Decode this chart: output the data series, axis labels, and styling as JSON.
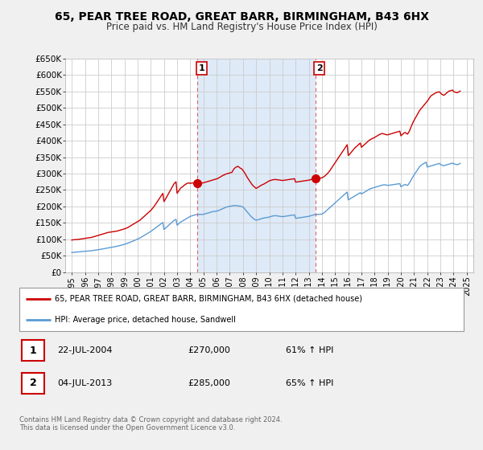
{
  "title": "65, PEAR TREE ROAD, GREAT BARR, BIRMINGHAM, B43 6HX",
  "subtitle": "Price paid vs. HM Land Registry's House Price Index (HPI)",
  "red_label": "65, PEAR TREE ROAD, GREAT BARR, BIRMINGHAM, B43 6HX (detached house)",
  "blue_label": "HPI: Average price, detached house, Sandwell",
  "ylim": [
    0,
    650000
  ],
  "yticks": [
    0,
    50000,
    100000,
    150000,
    200000,
    250000,
    300000,
    350000,
    400000,
    450000,
    500000,
    550000,
    600000,
    650000
  ],
  "ytick_labels": [
    "£0",
    "£50K",
    "£100K",
    "£150K",
    "£200K",
    "£250K",
    "£300K",
    "£350K",
    "£400K",
    "£450K",
    "£500K",
    "£550K",
    "£600K",
    "£650K"
  ],
  "sale1": {
    "date": "22-JUL-2004",
    "price": 270000,
    "hpi_pct": "61% ↑ HPI",
    "year": 2004.55
  },
  "sale2": {
    "date": "04-JUL-2013",
    "price": 285000,
    "hpi_pct": "65% ↑ HPI",
    "year": 2013.51
  },
  "footer": "Contains HM Land Registry data © Crown copyright and database right 2024.\nThis data is licensed under the Open Government Licence v3.0.",
  "bg_color": "#f0f0f0",
  "plot_bg": "#ffffff",
  "shaded_bg": "#deeaf7",
  "grid_color": "#cccccc",
  "red_color": "#cc0000",
  "blue_color": "#5b9bd5",
  "sale_dashed_color": "#e06060",
  "red_x": [
    1995.0,
    1995.083,
    1995.167,
    1995.25,
    1995.333,
    1995.417,
    1995.5,
    1995.583,
    1995.667,
    1995.75,
    1995.833,
    1995.917,
    1996.0,
    1996.083,
    1996.167,
    1996.25,
    1996.333,
    1996.417,
    1996.5,
    1996.583,
    1996.667,
    1996.75,
    1996.833,
    1996.917,
    1997.0,
    1997.083,
    1997.167,
    1997.25,
    1997.333,
    1997.417,
    1997.5,
    1997.583,
    1997.667,
    1997.75,
    1997.833,
    1997.917,
    1998.0,
    1998.083,
    1998.167,
    1998.25,
    1998.333,
    1998.417,
    1998.5,
    1998.583,
    1998.667,
    1998.75,
    1998.833,
    1998.917,
    1999.0,
    1999.083,
    1999.167,
    1999.25,
    1999.333,
    1999.417,
    1999.5,
    1999.583,
    1999.667,
    1999.75,
    1999.833,
    1999.917,
    2000.0,
    2000.083,
    2000.167,
    2000.25,
    2000.333,
    2000.417,
    2000.5,
    2000.583,
    2000.667,
    2000.75,
    2000.833,
    2000.917,
    2001.0,
    2001.083,
    2001.167,
    2001.25,
    2001.333,
    2001.417,
    2001.5,
    2001.583,
    2001.667,
    2001.75,
    2001.833,
    2001.917,
    2002.0,
    2002.083,
    2002.167,
    2002.25,
    2002.333,
    2002.417,
    2002.5,
    2002.583,
    2002.667,
    2002.75,
    2002.833,
    2002.917,
    2003.0,
    2003.083,
    2003.167,
    2003.25,
    2003.333,
    2003.417,
    2003.5,
    2003.583,
    2003.667,
    2003.75,
    2003.833,
    2003.917,
    2004.0,
    2004.083,
    2004.167,
    2004.25,
    2004.333,
    2004.417,
    2004.55,
    2005.0,
    2005.083,
    2005.167,
    2005.25,
    2005.333,
    2005.417,
    2005.5,
    2005.583,
    2005.667,
    2005.75,
    2005.833,
    2005.917,
    2006.0,
    2006.083,
    2006.167,
    2006.25,
    2006.333,
    2006.417,
    2006.5,
    2006.583,
    2006.667,
    2006.75,
    2006.833,
    2006.917,
    2007.0,
    2007.083,
    2007.167,
    2007.25,
    2007.333,
    2007.417,
    2007.5,
    2007.583,
    2007.667,
    2007.75,
    2007.833,
    2007.917,
    2008.0,
    2008.083,
    2008.167,
    2008.25,
    2008.333,
    2008.417,
    2008.5,
    2008.583,
    2008.667,
    2008.75,
    2008.833,
    2008.917,
    2009.0,
    2009.083,
    2009.167,
    2009.25,
    2009.333,
    2009.417,
    2009.5,
    2009.583,
    2009.667,
    2009.75,
    2009.833,
    2009.917,
    2010.0,
    2010.083,
    2010.167,
    2010.25,
    2010.333,
    2010.417,
    2010.5,
    2010.583,
    2010.667,
    2010.75,
    2010.833,
    2010.917,
    2011.0,
    2011.083,
    2011.167,
    2011.25,
    2011.333,
    2011.417,
    2011.5,
    2011.583,
    2011.667,
    2011.75,
    2011.833,
    2011.917,
    2012.0,
    2012.083,
    2012.167,
    2012.25,
    2012.333,
    2012.417,
    2012.5,
    2012.583,
    2012.667,
    2012.75,
    2012.833,
    2012.917,
    2013.0,
    2013.083,
    2013.167,
    2013.25,
    2013.333,
    2013.417,
    2013.51,
    2014.0,
    2014.083,
    2014.167,
    2014.25,
    2014.333,
    2014.417,
    2014.5,
    2014.583,
    2014.667,
    2014.75,
    2014.833,
    2014.917,
    2015.0,
    2015.083,
    2015.167,
    2015.25,
    2015.333,
    2015.417,
    2015.5,
    2015.583,
    2015.667,
    2015.75,
    2015.833,
    2015.917,
    2016.0,
    2016.083,
    2016.167,
    2016.25,
    2016.333,
    2016.417,
    2016.5,
    2016.583,
    2016.667,
    2016.75,
    2016.833,
    2016.917,
    2017.0,
    2017.083,
    2017.167,
    2017.25,
    2017.333,
    2017.417,
    2017.5,
    2017.583,
    2017.667,
    2017.75,
    2017.833,
    2017.917,
    2018.0,
    2018.083,
    2018.167,
    2018.25,
    2018.333,
    2018.417,
    2018.5,
    2018.583,
    2018.667,
    2018.75,
    2018.833,
    2018.917,
    2019.0,
    2019.083,
    2019.167,
    2019.25,
    2019.333,
    2019.417,
    2019.5,
    2019.583,
    2019.667,
    2019.75,
    2019.833,
    2019.917,
    2020.0,
    2020.083,
    2020.167,
    2020.25,
    2020.333,
    2020.417,
    2020.5,
    2020.583,
    2020.667,
    2020.75,
    2020.833,
    2020.917,
    2021.0,
    2021.083,
    2021.167,
    2021.25,
    2021.333,
    2021.417,
    2021.5,
    2021.583,
    2021.667,
    2021.75,
    2021.833,
    2021.917,
    2022.0,
    2022.083,
    2022.167,
    2022.25,
    2022.333,
    2022.417,
    2022.5,
    2022.583,
    2022.667,
    2022.75,
    2022.833,
    2022.917,
    2023.0,
    2023.083,
    2023.167,
    2023.25,
    2023.333,
    2023.417,
    2023.5,
    2023.583,
    2023.667,
    2023.75,
    2023.833,
    2023.917,
    2024.0,
    2024.083,
    2024.167,
    2024.25,
    2024.333,
    2024.417,
    2024.5
  ],
  "red_y": [
    98000,
    98500,
    99000,
    99200,
    99500,
    99800,
    100000,
    100500,
    101000,
    101500,
    102000,
    102500,
    103000,
    103500,
    104000,
    104500,
    105000,
    105500,
    106000,
    107000,
    108000,
    109000,
    110000,
    111000,
    112000,
    113000,
    114000,
    115000,
    116000,
    117000,
    118000,
    119000,
    120000,
    121000,
    121500,
    122000,
    122500,
    123000,
    123500,
    124000,
    124500,
    125000,
    126000,
    127000,
    128000,
    129000,
    130000,
    131000,
    132000,
    133000,
    134500,
    136000,
    138000,
    140000,
    142000,
    144000,
    146000,
    148000,
    150000,
    152000,
    154000,
    156000,
    158000,
    161000,
    164000,
    167000,
    170000,
    173000,
    176000,
    179000,
    182000,
    185000,
    188000,
    192000,
    196000,
    200000,
    205000,
    210000,
    215000,
    220000,
    225000,
    230000,
    235000,
    240000,
    215000,
    220000,
    226000,
    232000,
    238000,
    244000,
    250000,
    256000,
    262000,
    268000,
    272000,
    275000,
    240000,
    245000,
    250000,
    255000,
    258000,
    260000,
    263000,
    266000,
    268000,
    270000,
    271000,
    272000,
    270000,
    271000,
    271500,
    272000,
    271000,
    270500,
    270000,
    272000,
    273000,
    274000,
    275000,
    276000,
    277000,
    278000,
    279000,
    280000,
    281000,
    282000,
    283000,
    284000,
    285000,
    287000,
    289000,
    291000,
    293000,
    295000,
    296000,
    298000,
    299000,
    300000,
    301000,
    302000,
    303000,
    304000,
    310000,
    315000,
    318000,
    320000,
    322000,
    321000,
    318000,
    316000,
    314000,
    310000,
    305000,
    300000,
    294000,
    288000,
    283000,
    278000,
    273000,
    268000,
    264000,
    261000,
    258000,
    255000,
    257000,
    259000,
    261000,
    263000,
    265000,
    267000,
    268000,
    270000,
    272000,
    274000,
    276000,
    278000,
    279000,
    280000,
    281000,
    281500,
    282000,
    282000,
    281500,
    281000,
    280500,
    280000,
    279500,
    279000,
    279500,
    280000,
    280500,
    281000,
    281500,
    282000,
    282500,
    283000,
    283500,
    284000,
    284500,
    274000,
    274500,
    275000,
    275500,
    276000,
    276500,
    277000,
    277500,
    278000,
    278500,
    279000,
    279500,
    280000,
    281000,
    282000,
    283000,
    284000,
    285000,
    285000,
    287000,
    289000,
    291000,
    294000,
    297000,
    300000,
    304000,
    308000,
    313000,
    318000,
    323000,
    328000,
    333000,
    338000,
    343000,
    348000,
    353000,
    358000,
    363000,
    368000,
    373000,
    378000,
    383000,
    388000,
    355000,
    358000,
    362000,
    366000,
    370000,
    374000,
    378000,
    381000,
    384000,
    387000,
    390000,
    393000,
    380000,
    383000,
    386000,
    389000,
    392000,
    395000,
    398000,
    401000,
    403000,
    405000,
    407000,
    408000,
    410000,
    412000,
    414000,
    416000,
    418000,
    420000,
    421000,
    422000,
    421000,
    420000,
    419000,
    418000,
    418000,
    419000,
    420000,
    421000,
    422000,
    423000,
    424000,
    425000,
    426000,
    427000,
    428000,
    429000,
    415000,
    418000,
    421000,
    424000,
    425000,
    422000,
    420000,
    425000,
    432000,
    440000,
    448000,
    456000,
    462000,
    468000,
    474000,
    480000,
    486000,
    492000,
    496000,
    500000,
    504000,
    508000,
    512000,
    516000,
    520000,
    525000,
    530000,
    535000,
    538000,
    540000,
    542000,
    544000,
    546000,
    547000,
    548000,
    549000,
    545000,
    542000,
    540000,
    538000,
    540000,
    543000,
    546000,
    549000,
    551000,
    552000,
    553000,
    554000,
    550000,
    548000,
    547000,
    546000,
    547000,
    549000,
    551000
  ],
  "blue_x": [
    1995.0,
    1995.083,
    1995.167,
    1995.25,
    1995.333,
    1995.417,
    1995.5,
    1995.583,
    1995.667,
    1995.75,
    1995.833,
    1995.917,
    1996.0,
    1996.083,
    1996.167,
    1996.25,
    1996.333,
    1996.417,
    1996.5,
    1996.583,
    1996.667,
    1996.75,
    1996.833,
    1996.917,
    1997.0,
    1997.083,
    1997.167,
    1997.25,
    1997.333,
    1997.417,
    1997.5,
    1997.583,
    1997.667,
    1997.75,
    1997.833,
    1997.917,
    1998.0,
    1998.083,
    1998.167,
    1998.25,
    1998.333,
    1998.417,
    1998.5,
    1998.583,
    1998.667,
    1998.75,
    1998.833,
    1998.917,
    1999.0,
    1999.083,
    1999.167,
    1999.25,
    1999.333,
    1999.417,
    1999.5,
    1999.583,
    1999.667,
    1999.75,
    1999.833,
    1999.917,
    2000.0,
    2000.083,
    2000.167,
    2000.25,
    2000.333,
    2000.417,
    2000.5,
    2000.583,
    2000.667,
    2000.75,
    2000.833,
    2000.917,
    2001.0,
    2001.083,
    2001.167,
    2001.25,
    2001.333,
    2001.417,
    2001.5,
    2001.583,
    2001.667,
    2001.75,
    2001.833,
    2001.917,
    2002.0,
    2002.083,
    2002.167,
    2002.25,
    2002.333,
    2002.417,
    2002.5,
    2002.583,
    2002.667,
    2002.75,
    2002.833,
    2002.917,
    2003.0,
    2003.083,
    2003.167,
    2003.25,
    2003.333,
    2003.417,
    2003.5,
    2003.583,
    2003.667,
    2003.75,
    2003.833,
    2003.917,
    2004.0,
    2004.083,
    2004.167,
    2004.25,
    2004.333,
    2004.417,
    2004.5,
    2005.0,
    2005.083,
    2005.167,
    2005.25,
    2005.333,
    2005.417,
    2005.5,
    2005.583,
    2005.667,
    2005.75,
    2005.833,
    2005.917,
    2006.0,
    2006.083,
    2006.167,
    2006.25,
    2006.333,
    2006.417,
    2006.5,
    2006.583,
    2006.667,
    2006.75,
    2006.833,
    2006.917,
    2007.0,
    2007.083,
    2007.167,
    2007.25,
    2007.333,
    2007.417,
    2007.5,
    2007.583,
    2007.667,
    2007.75,
    2007.833,
    2007.917,
    2008.0,
    2008.083,
    2008.167,
    2008.25,
    2008.333,
    2008.417,
    2008.5,
    2008.583,
    2008.667,
    2008.75,
    2008.833,
    2008.917,
    2009.0,
    2009.083,
    2009.167,
    2009.25,
    2009.333,
    2009.417,
    2009.5,
    2009.583,
    2009.667,
    2009.75,
    2009.833,
    2009.917,
    2010.0,
    2010.083,
    2010.167,
    2010.25,
    2010.333,
    2010.417,
    2010.5,
    2010.583,
    2010.667,
    2010.75,
    2010.833,
    2010.917,
    2011.0,
    2011.083,
    2011.167,
    2011.25,
    2011.333,
    2011.417,
    2011.5,
    2011.583,
    2011.667,
    2011.75,
    2011.833,
    2011.917,
    2012.0,
    2012.083,
    2012.167,
    2012.25,
    2012.333,
    2012.417,
    2012.5,
    2012.583,
    2012.667,
    2012.75,
    2012.833,
    2012.917,
    2013.0,
    2013.083,
    2013.167,
    2013.25,
    2013.333,
    2013.417,
    2013.5,
    2014.0,
    2014.083,
    2014.167,
    2014.25,
    2014.333,
    2014.417,
    2014.5,
    2014.583,
    2014.667,
    2014.75,
    2014.833,
    2014.917,
    2015.0,
    2015.083,
    2015.167,
    2015.25,
    2015.333,
    2015.417,
    2015.5,
    2015.583,
    2015.667,
    2015.75,
    2015.833,
    2015.917,
    2016.0,
    2016.083,
    2016.167,
    2016.25,
    2016.333,
    2016.417,
    2016.5,
    2016.583,
    2016.667,
    2016.75,
    2016.833,
    2016.917,
    2017.0,
    2017.083,
    2017.167,
    2017.25,
    2017.333,
    2017.417,
    2017.5,
    2017.583,
    2017.667,
    2017.75,
    2017.833,
    2017.917,
    2018.0,
    2018.083,
    2018.167,
    2018.25,
    2018.333,
    2018.417,
    2018.5,
    2018.583,
    2018.667,
    2018.75,
    2018.833,
    2018.917,
    2019.0,
    2019.083,
    2019.167,
    2019.25,
    2019.333,
    2019.417,
    2019.5,
    2019.583,
    2019.667,
    2019.75,
    2019.833,
    2019.917,
    2020.0,
    2020.083,
    2020.167,
    2020.25,
    2020.333,
    2020.417,
    2020.5,
    2020.583,
    2020.667,
    2020.75,
    2020.833,
    2020.917,
    2021.0,
    2021.083,
    2021.167,
    2021.25,
    2021.333,
    2021.417,
    2021.5,
    2021.583,
    2021.667,
    2021.75,
    2021.833,
    2021.917,
    2022.0,
    2022.083,
    2022.167,
    2022.25,
    2022.333,
    2022.417,
    2022.5,
    2022.583,
    2022.667,
    2022.75,
    2022.833,
    2022.917,
    2023.0,
    2023.083,
    2023.167,
    2023.25,
    2023.333,
    2023.417,
    2023.5,
    2023.583,
    2023.667,
    2023.75,
    2023.833,
    2023.917,
    2024.0,
    2024.083,
    2024.167,
    2024.25,
    2024.333,
    2024.417,
    2024.5
  ],
  "blue_y": [
    60000,
    60300,
    60600,
    60900,
    61200,
    61500,
    61800,
    62100,
    62400,
    62700,
    63000,
    63300,
    63600,
    63900,
    64200,
    64500,
    64900,
    65300,
    65700,
    66100,
    66500,
    67000,
    67500,
    68000,
    68500,
    69000,
    69600,
    70200,
    70800,
    71400,
    72000,
    72600,
    73200,
    73800,
    74400,
    75000,
    75600,
    76200,
    76800,
    77400,
    78000,
    78800,
    79600,
    80400,
    81200,
    82000,
    83000,
    84000,
    85000,
    86000,
    87200,
    88400,
    89700,
    91000,
    92300,
    93600,
    95000,
    96500,
    98000,
    99500,
    101000,
    102500,
    104000,
    106000,
    108000,
    110000,
    112000,
    114000,
    116000,
    118000,
    120000,
    122000,
    124000,
    126500,
    129000,
    131500,
    134000,
    136500,
    139000,
    141500,
    144000,
    146500,
    149000,
    151500,
    130000,
    133000,
    136000,
    139000,
    142000,
    145000,
    148000,
    151000,
    154000,
    157000,
    159000,
    161000,
    143000,
    146000,
    149000,
    152000,
    154000,
    156000,
    158000,
    160000,
    162000,
    164000,
    166000,
    168000,
    170000,
    171000,
    172000,
    173000,
    174000,
    175000,
    175500,
    176000,
    177000,
    178000,
    179000,
    180000,
    181000,
    182000,
    183000,
    184000,
    184500,
    185000,
    185500,
    186000,
    187000,
    188000,
    189500,
    191000,
    192500,
    194000,
    195500,
    197000,
    198000,
    199000,
    200000,
    200500,
    201000,
    201500,
    202500,
    203000,
    203000,
    202500,
    202000,
    201500,
    201000,
    200500,
    200000,
    198000,
    195000,
    191000,
    187000,
    183000,
    179000,
    175000,
    171000,
    168000,
    165000,
    162000,
    160000,
    158000,
    159000,
    160000,
    161000,
    162000,
    163000,
    164000,
    165000,
    165500,
    166000,
    166500,
    167000,
    168000,
    169000,
    170000,
    171000,
    171500,
    172000,
    172000,
    171500,
    171000,
    170500,
    170000,
    169500,
    169000,
    169500,
    170000,
    170500,
    171000,
    171500,
    172000,
    172500,
    173000,
    173500,
    174000,
    174500,
    164000,
    164500,
    165000,
    165500,
    166000,
    166500,
    167000,
    167500,
    168000,
    168500,
    169000,
    169500,
    170000,
    171000,
    172000,
    173000,
    174000,
    175000,
    175000,
    177000,
    179000,
    181000,
    184000,
    187000,
    190000,
    193000,
    196000,
    199000,
    202000,
    205000,
    208000,
    211000,
    214000,
    217000,
    220000,
    223000,
    226000,
    229000,
    232000,
    235000,
    238000,
    241000,
    244000,
    220000,
    222000,
    224000,
    226000,
    228000,
    230000,
    232000,
    234000,
    236000,
    238000,
    240000,
    242000,
    238000,
    240000,
    242000,
    244000,
    246000,
    248000,
    250000,
    252000,
    254000,
    255000,
    256000,
    257000,
    258000,
    259000,
    260000,
    261000,
    262000,
    263000,
    264000,
    265000,
    265500,
    266000,
    265500,
    265000,
    264000,
    264500,
    265000,
    265500,
    266000,
    266500,
    267000,
    267500,
    268000,
    268500,
    269000,
    269500,
    260000,
    262000,
    264000,
    266000,
    267000,
    265000,
    264000,
    268000,
    273000,
    279000,
    285000,
    291000,
    296000,
    301000,
    306000,
    311000,
    316000,
    321000,
    324000,
    327000,
    329000,
    331000,
    333000,
    335000,
    320000,
    321000,
    322000,
    323000,
    324000,
    325000,
    326000,
    327000,
    328000,
    329000,
    330000,
    331000,
    328000,
    326000,
    325000,
    324000,
    325000,
    326000,
    327000,
    328000,
    329000,
    330000,
    331000,
    332000,
    330000,
    329000,
    328000,
    327000,
    328000,
    329000,
    331000
  ]
}
